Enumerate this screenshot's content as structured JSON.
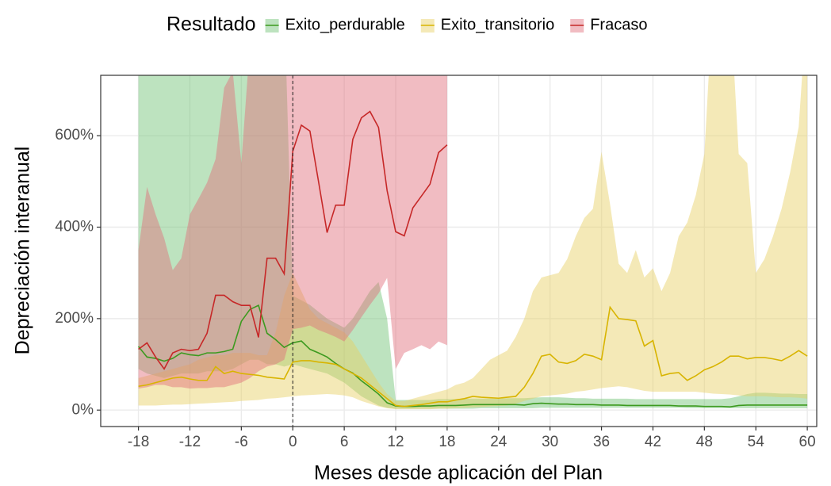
{
  "chart_data": {
    "type": "ribbon-line",
    "xlabel": "Meses desde aplicación del Plan",
    "ylabel": "Depreciación interanual",
    "legend_title": "Resultado",
    "legend_position": "top",
    "grid": true,
    "vline": 0,
    "ribbon_opacity": 0.45,
    "xlim": [
      -22.4,
      61.1
    ],
    "ylim": [
      -36,
      732
    ],
    "xticks": [
      -18,
      -12,
      -6,
      0,
      6,
      12,
      18,
      24,
      30,
      36,
      42,
      48,
      54,
      60
    ],
    "yticks": [
      {
        "value": 0,
        "label": "0%"
      },
      {
        "value": 200,
        "label": "200%"
      },
      {
        "value": 400,
        "label": "400%"
      },
      {
        "value": 600,
        "label": "600%"
      }
    ],
    "series": [
      {
        "name": "Exito_perdurable",
        "color": "#3c9a1f",
        "fill": "#6cc070",
        "x": [
          -18,
          -17,
          -16,
          -15,
          -14,
          -13,
          -12,
          -11,
          -10,
          -9,
          -8,
          -7,
          -6,
          -5,
          -4,
          -3,
          -2,
          -1,
          0,
          1,
          2,
          3,
          4,
          5,
          6,
          7,
          8,
          9,
          10,
          11,
          12,
          13,
          14,
          15,
          16,
          17,
          18,
          19,
          20,
          21,
          22,
          23,
          24,
          25,
          26,
          27,
          28,
          29,
          30,
          31,
          32,
          33,
          34,
          35,
          36,
          37,
          38,
          39,
          40,
          41,
          42,
          43,
          44,
          45,
          46,
          47,
          48,
          49,
          50,
          51,
          52,
          53,
          54,
          55,
          56,
          57,
          58,
          59,
          60
        ],
        "values": [
          139,
          116,
          113,
          107,
          113,
          125,
          121,
          119,
          125,
          125,
          128,
          133,
          194,
          220,
          229,
          168,
          154,
          137,
          147,
          151,
          133,
          125,
          116,
          102,
          90,
          81,
          64,
          50,
          35,
          16,
          9,
          8,
          8,
          9,
          9,
          10,
          10,
          10,
          11,
          12,
          12,
          12,
          12,
          12,
          12,
          11,
          14,
          15,
          14,
          13,
          13,
          12,
          12,
          12,
          11,
          11,
          11,
          10,
          10,
          10,
          10,
          10,
          10,
          9,
          9,
          9,
          8,
          8,
          8,
          7,
          10,
          11,
          11,
          11,
          11,
          11,
          11,
          11,
          11
        ],
        "upper": [
          900,
          900,
          900,
          900,
          900,
          900,
          900,
          900,
          900,
          900,
          900,
          900,
          900,
          900,
          900,
          900,
          900,
          900,
          250,
          240,
          230,
          215,
          200,
          190,
          180,
          200,
          230,
          260,
          280,
          200,
          22,
          22,
          22,
          22,
          22,
          24,
          24,
          24,
          25,
          25,
          25,
          25,
          25,
          26,
          26,
          26,
          27,
          28,
          28,
          28,
          27,
          26,
          26,
          25,
          25,
          25,
          25,
          25,
          24,
          24,
          24,
          24,
          24,
          24,
          24,
          24,
          24,
          24,
          24,
          26,
          30,
          35,
          38,
          38,
          37,
          36,
          36,
          35,
          35
        ],
        "lower": [
          90,
          80,
          75,
          70,
          75,
          80,
          80,
          80,
          85,
          85,
          85,
          90,
          100,
          110,
          110,
          100,
          100,
          95,
          100,
          95,
          90,
          85,
          80,
          70,
          60,
          45,
          30,
          20,
          10,
          5,
          3,
          3,
          3,
          3,
          3,
          3,
          3,
          3,
          3,
          3,
          4,
          4,
          4,
          4,
          4,
          4,
          4,
          5,
          5,
          5,
          5,
          5,
          5,
          5,
          5,
          5,
          5,
          5,
          5,
          5,
          5,
          5,
          5,
          5,
          4,
          4,
          4,
          4,
          4,
          4,
          4,
          4,
          4,
          4,
          4,
          4,
          4,
          4,
          4
        ]
      },
      {
        "name": "Exito_transitorio",
        "color": "#d8b400",
        "fill": "#e6cf5f",
        "x": [
          -18,
          -17,
          -16,
          -15,
          -14,
          -13,
          -12,
          -11,
          -10,
          -9,
          -8,
          -7,
          -6,
          -5,
          -4,
          -3,
          -2,
          -1,
          0,
          1,
          2,
          3,
          4,
          5,
          6,
          7,
          8,
          9,
          10,
          11,
          12,
          13,
          14,
          15,
          16,
          17,
          18,
          19,
          20,
          21,
          22,
          23,
          24,
          25,
          26,
          27,
          28,
          29,
          30,
          31,
          32,
          33,
          34,
          35,
          36,
          37,
          38,
          39,
          40,
          41,
          42,
          43,
          44,
          45,
          46,
          47,
          48,
          49,
          50,
          51,
          52,
          53,
          54,
          55,
          56,
          57,
          58,
          59,
          60
        ],
        "values": [
          52,
          55,
          60,
          65,
          70,
          72,
          68,
          65,
          65,
          95,
          80,
          85,
          80,
          78,
          76,
          72,
          70,
          68,
          105,
          108,
          108,
          105,
          103,
          100,
          90,
          80,
          70,
          55,
          40,
          25,
          10,
          8,
          10,
          12,
          15,
          18,
          18,
          22,
          25,
          30,
          28,
          27,
          26,
          28,
          30,
          50,
          80,
          118,
          122,
          105,
          102,
          108,
          122,
          118,
          110,
          225,
          200,
          198,
          195,
          140,
          152,
          75,
          80,
          82,
          65,
          75,
          88,
          95,
          105,
          118,
          118,
          112,
          115,
          115,
          112,
          108,
          118,
          130,
          118
        ],
        "upper": [
          70,
          75,
          80,
          85,
          90,
          95,
          100,
          110,
          115,
          120,
          120,
          125,
          125,
          125,
          120,
          120,
          170,
          250,
          300,
          260,
          220,
          200,
          190,
          180,
          170,
          150,
          120,
          90,
          60,
          35,
          20,
          20,
          25,
          30,
          35,
          40,
          45,
          55,
          60,
          70,
          90,
          110,
          120,
          130,
          160,
          200,
          260,
          290,
          295,
          300,
          330,
          380,
          420,
          440,
          565,
          450,
          320,
          300,
          350,
          290,
          310,
          260,
          300,
          380,
          410,
          470,
          560,
          900,
          900,
          900,
          560,
          540,
          300,
          330,
          380,
          440,
          520,
          620,
          900
        ],
        "lower": [
          10,
          10,
          10,
          11,
          12,
          12,
          13,
          14,
          15,
          16,
          17,
          18,
          20,
          21,
          22,
          25,
          26,
          28,
          30,
          32,
          33,
          34,
          35,
          34,
          32,
          28,
          20,
          14,
          8,
          4,
          2,
          2,
          2,
          2,
          2,
          3,
          3,
          4,
          5,
          6,
          7,
          8,
          9,
          10,
          14,
          20,
          25,
          30,
          32,
          34,
          36,
          40,
          42,
          45,
          48,
          50,
          52,
          50,
          46,
          42,
          40,
          40,
          40,
          40,
          40,
          40,
          38,
          36,
          35,
          34,
          32,
          30,
          30,
          30,
          29,
          28,
          28,
          27,
          25
        ]
      },
      {
        "name": "Fracaso",
        "color": "#c62828",
        "fill": "#e06b78",
        "x": [
          -18,
          -17,
          -16,
          -15,
          -14,
          -13,
          -12,
          -11,
          -10,
          -9,
          -8,
          -7,
          -6,
          -5,
          -4,
          -3,
          -2,
          -1,
          0,
          1,
          2,
          3,
          4,
          5,
          6,
          7,
          8,
          9,
          10,
          11,
          12,
          13,
          14,
          15,
          16,
          17,
          18
        ],
        "values": [
          133,
          147,
          116,
          90,
          125,
          133,
          130,
          133,
          168,
          251,
          251,
          237,
          229,
          229,
          159,
          332,
          332,
          298,
          566,
          623,
          610,
          500,
          388,
          448,
          448,
          592,
          639,
          653,
          618,
          480,
          390,
          381,
          442,
          468,
          494,
          563,
          580
        ],
        "upper": [
          350,
          488,
          428,
          376,
          306,
          332,
          428,
          462,
          497,
          549,
          705,
          740,
          540,
          800,
          800,
          800,
          800,
          800,
          800,
          800,
          800,
          800,
          800,
          800,
          800,
          800,
          800,
          800,
          800,
          800,
          800,
          800,
          800,
          800,
          800,
          800,
          800
        ],
        "lower": [
          47,
          50,
          55,
          55,
          50,
          50,
          47,
          48,
          48,
          50,
          50,
          55,
          60,
          70,
          85,
          95,
          100,
          110,
          177,
          180,
          185,
          175,
          168,
          160,
          150,
          175,
          203,
          230,
          255,
          289,
          90,
          125,
          133,
          142,
          133,
          150,
          142
        ]
      }
    ]
  }
}
